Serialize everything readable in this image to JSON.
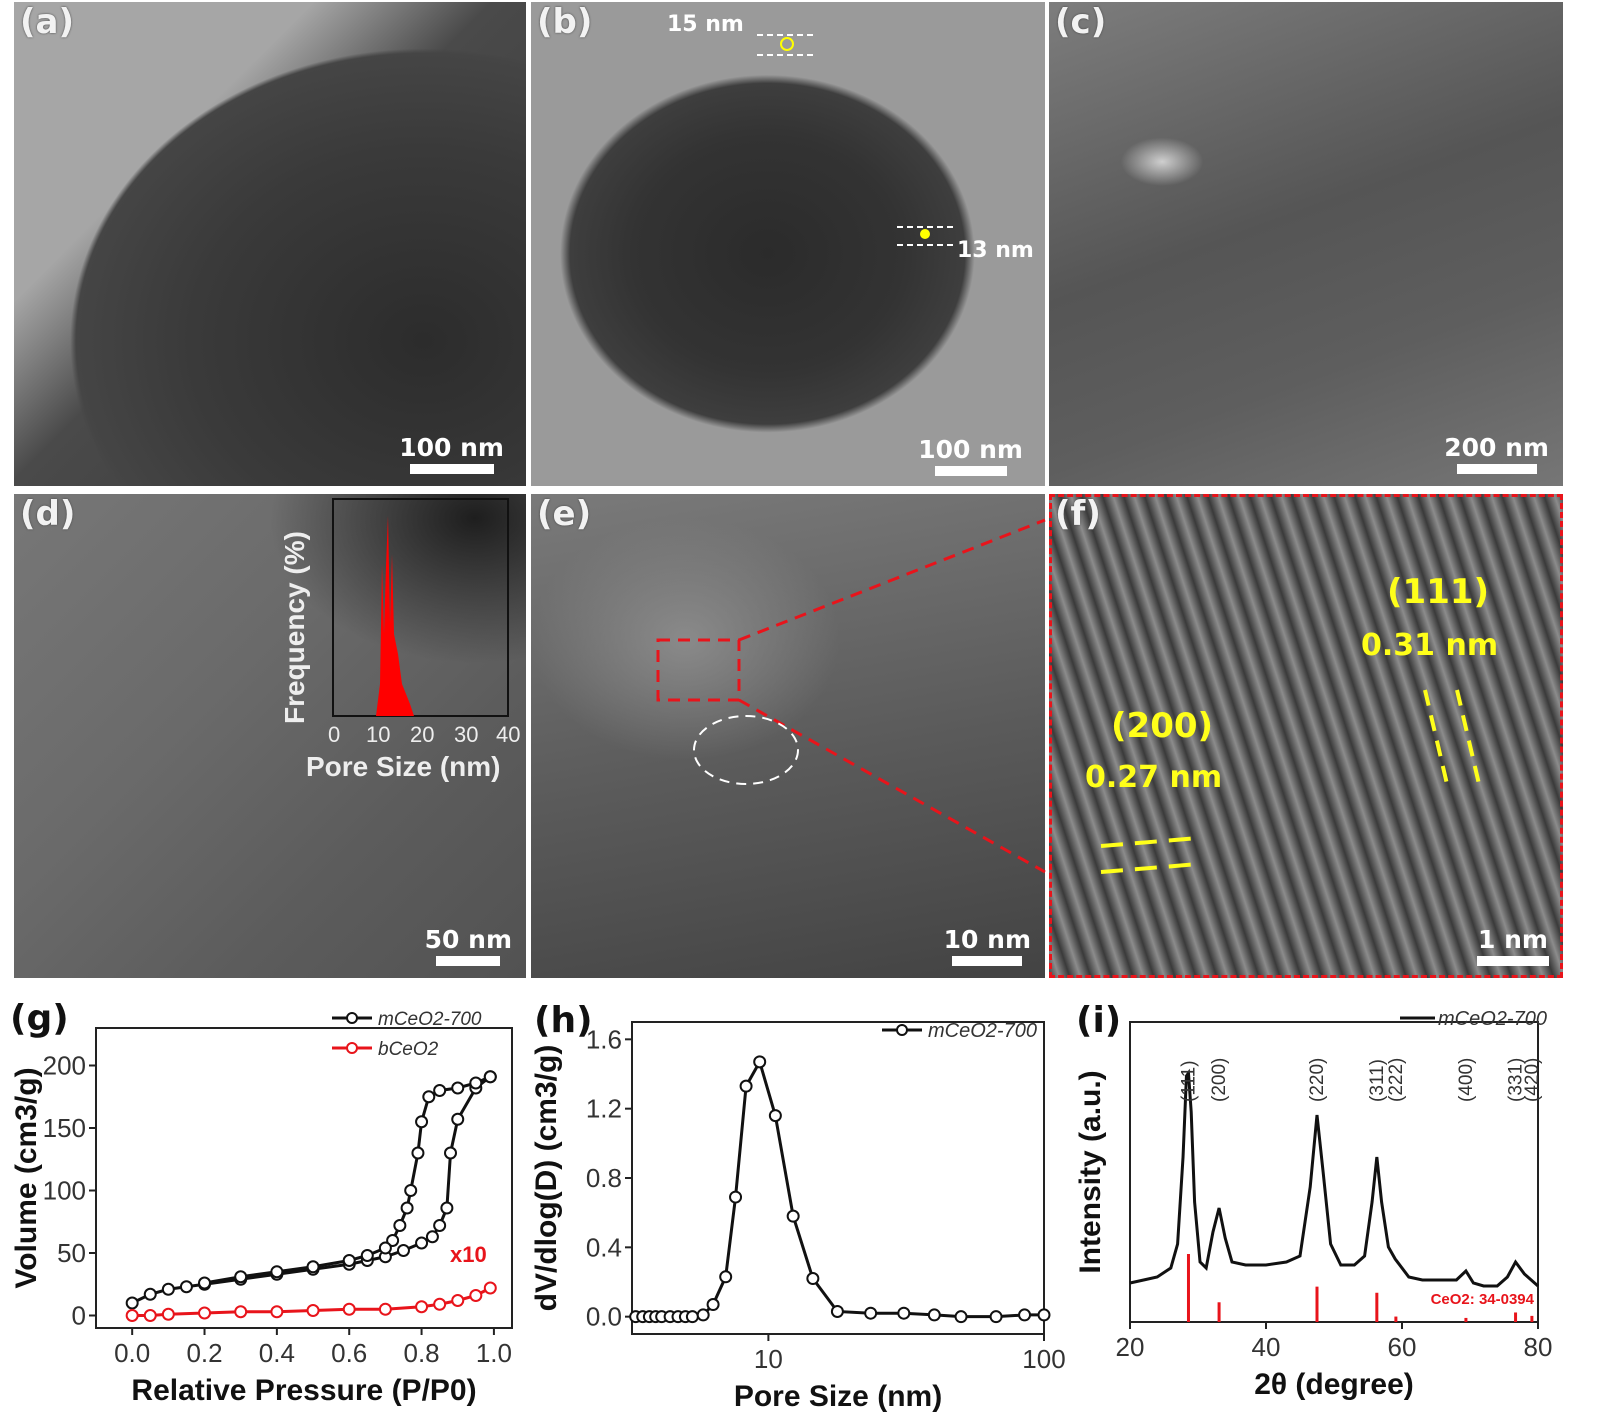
{
  "figure": {
    "panels": {
      "a": {
        "label": "(a)",
        "scale_bar": "100 nm"
      },
      "b": {
        "label": "(b)",
        "scale_bar": "100 nm",
        "annotations": [
          "15 nm",
          "13 nm"
        ]
      },
      "c": {
        "label": "(c)",
        "scale_bar": "200 nm"
      },
      "d": {
        "label": "(d)",
        "scale_bar": "50 nm",
        "inset": {
          "ylabel": "Frequency (%)",
          "xlabel": "Pore Size (nm)",
          "xticks": [
            "0",
            "10",
            "20",
            "30",
            "40"
          ]
        }
      },
      "e": {
        "label": "(e)",
        "scale_bar": "10 nm"
      },
      "f": {
        "label": "(f)",
        "scale_bar": "1 nm",
        "annotations": {
          "plane1": "(111)",
          "spacing1": "0.31 nm",
          "plane2": "(200)",
          "spacing2": "0.27 nm"
        }
      },
      "g": {
        "label": "(g)"
      },
      "h": {
        "label": "(h)"
      },
      "i": {
        "label": "(i)"
      }
    },
    "colors": {
      "red": "#e8141b",
      "yellow": "#ffff1a",
      "black": "#111111"
    }
  },
  "chart_data": [
    {
      "panel": "g",
      "type": "scatter",
      "title": "",
      "xlabel": "Relative Pressure (P/P0)",
      "ylabel": "Volume (cm3/g)",
      "xlim": [
        -0.1,
        1.05
      ],
      "ylim": [
        -10,
        230
      ],
      "xticks": [
        "0.0",
        "0.2",
        "0.4",
        "0.6",
        "0.8",
        "1.0"
      ],
      "yticks": [
        "0",
        "50",
        "100",
        "150",
        "200"
      ],
      "grid": false,
      "legend": {
        "position": "upper-right",
        "entries": [
          "mCeO2-700",
          "bCeO2"
        ]
      },
      "annotations": [
        "x10"
      ],
      "series": [
        {
          "name": "mCeO2-700 adsorption",
          "color": "#111111",
          "x": [
            0.0,
            0.05,
            0.1,
            0.15,
            0.2,
            0.3,
            0.4,
            0.5,
            0.6,
            0.65,
            0.7,
            0.75,
            0.8,
            0.83,
            0.85,
            0.87,
            0.88,
            0.9,
            0.95,
            0.99
          ],
          "y": [
            10,
            17,
            21,
            23,
            25,
            29,
            33,
            37,
            41,
            44,
            47,
            52,
            58,
            63,
            72,
            86,
            130,
            157,
            182,
            191
          ]
        },
        {
          "name": "mCeO2-700 desorption",
          "color": "#111111",
          "x": [
            0.99,
            0.95,
            0.9,
            0.85,
            0.82,
            0.8,
            0.79,
            0.77,
            0.76,
            0.74,
            0.72,
            0.7,
            0.65,
            0.6,
            0.5,
            0.4,
            0.3,
            0.2
          ],
          "y": [
            191,
            186,
            182,
            180,
            175,
            155,
            130,
            100,
            86,
            72,
            60,
            54,
            48,
            44,
            39,
            35,
            31,
            26
          ]
        },
        {
          "name": "bCeO2 (x10)",
          "color": "#e8141b",
          "x": [
            0.0,
            0.05,
            0.1,
            0.2,
            0.3,
            0.4,
            0.5,
            0.6,
            0.7,
            0.8,
            0.85,
            0.9,
            0.95,
            0.99
          ],
          "y": [
            0,
            0,
            1,
            2,
            3,
            3,
            4,
            5,
            5,
            7,
            9,
            12,
            16,
            22
          ]
        }
      ]
    },
    {
      "panel": "h",
      "type": "line",
      "title": "",
      "xlabel": "Pore Size (nm)",
      "ylabel": "dV/dlog(D) (cm3/g)",
      "xscale": "log",
      "xlim": [
        3.2,
        100
      ],
      "ylim": [
        -0.1,
        1.7
      ],
      "xticks": [
        "10",
        "100"
      ],
      "yticks": [
        "0.0",
        "0.4",
        "0.8",
        "1.2",
        "1.6"
      ],
      "grid": false,
      "legend": {
        "position": "upper-right",
        "entries": [
          "mCeO2-700"
        ]
      },
      "series": [
        {
          "name": "mCeO2-700",
          "color": "#111111",
          "x": [
            3.3,
            3.5,
            3.7,
            3.9,
            4.1,
            4.4,
            4.7,
            5.0,
            5.3,
            5.8,
            6.3,
            7.0,
            7.6,
            8.3,
            9.3,
            10.6,
            12.3,
            14.5,
            17.8,
            23.5,
            31,
            40,
            50,
            67,
            85,
            100
          ],
          "y": [
            0.0,
            0.0,
            0.0,
            0.0,
            0.0,
            0.0,
            0.0,
            0.0,
            0.0,
            0.01,
            0.07,
            0.23,
            0.69,
            1.33,
            1.47,
            1.16,
            0.58,
            0.22,
            0.03,
            0.02,
            0.02,
            0.01,
            0.0,
            0.0,
            0.01,
            0.01
          ]
        }
      ]
    },
    {
      "panel": "i",
      "type": "line",
      "title": "",
      "xlabel": "2θ (degree)",
      "ylabel": "Intensity (a.u.)",
      "xlim": [
        20,
        80
      ],
      "ylim": [
        0,
        1.0
      ],
      "xticks": [
        "20",
        "40",
        "60",
        "80"
      ],
      "yticks": [],
      "grid": false,
      "legend": {
        "position": "upper-right",
        "entries": [
          "mCeO2-700"
        ]
      },
      "peak_labels": [
        {
          "hkl": "(111)",
          "two_theta": 28.6
        },
        {
          "hkl": "(200)",
          "two_theta": 33.1
        },
        {
          "hkl": "(220)",
          "two_theta": 47.5
        },
        {
          "hkl": "(311)",
          "two_theta": 56.3
        },
        {
          "hkl": "(222)",
          "two_theta": 59.1
        },
        {
          "hkl": "(400)",
          "two_theta": 69.4
        },
        {
          "hkl": "(331)",
          "two_theta": 76.7
        },
        {
          "hkl": "(420)",
          "two_theta": 79.1
        }
      ],
      "reference": {
        "label": "CeO2: 34-0394",
        "color": "#e8141b",
        "two_theta": [
          28.6,
          33.1,
          47.5,
          56.3,
          59.1,
          69.4,
          76.7,
          79.1
        ],
        "relative_intensity": [
          100,
          29,
          52,
          43,
          8,
          6,
          14,
          9
        ]
      },
      "series": [
        {
          "name": "mCeO2-700",
          "color": "#111111",
          "x": [
            20,
            22,
            24,
            26,
            27,
            27.8,
            28.3,
            28.6,
            29.0,
            29.5,
            30.3,
            31.2,
            32.2,
            33.1,
            34.0,
            35,
            37,
            40,
            43,
            45,
            46.5,
            47.5,
            48.4,
            49.5,
            51,
            53,
            54.5,
            55.6,
            56.3,
            57.0,
            58,
            59,
            61,
            63,
            66,
            68,
            69.4,
            70.5,
            72,
            74,
            75.5,
            76.7,
            78,
            80
          ],
          "y": [
            0.13,
            0.14,
            0.15,
            0.18,
            0.26,
            0.55,
            0.82,
            0.83,
            0.7,
            0.4,
            0.2,
            0.18,
            0.3,
            0.38,
            0.28,
            0.2,
            0.19,
            0.19,
            0.2,
            0.22,
            0.45,
            0.69,
            0.5,
            0.26,
            0.19,
            0.19,
            0.22,
            0.4,
            0.55,
            0.4,
            0.25,
            0.21,
            0.15,
            0.14,
            0.14,
            0.14,
            0.17,
            0.13,
            0.12,
            0.12,
            0.15,
            0.2,
            0.16,
            0.12
          ]
        }
      ]
    }
  ]
}
